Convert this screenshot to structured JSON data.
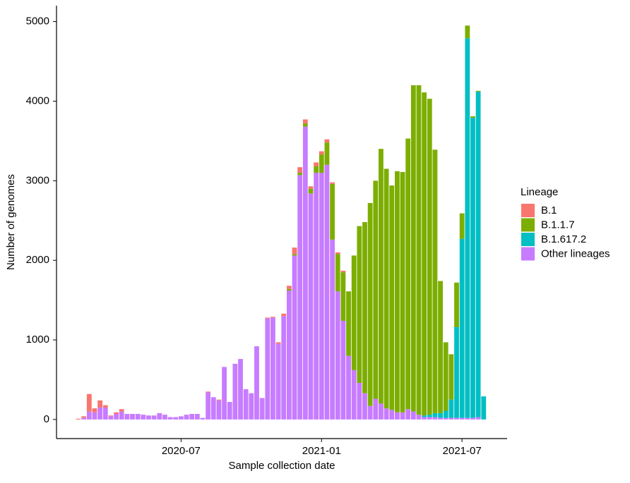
{
  "chart_data": {
    "type": "stacked_bar",
    "x_label": "Sample collection date",
    "y_label": "Number of genomes",
    "legend_title": "Lineage",
    "legend_position": "right",
    "grid": false,
    "categories": [
      null,
      null,
      null,
      null,
      null,
      null,
      null,
      null,
      null,
      null,
      null,
      null,
      null,
      null,
      null,
      null,
      null,
      null,
      null,
      "2020-07",
      null,
      null,
      null,
      null,
      null,
      null,
      null,
      null,
      null,
      null,
      null,
      null,
      null,
      null,
      null,
      null,
      null,
      null,
      null,
      null,
      null,
      null,
      null,
      null,
      null,
      "2021-01",
      null,
      null,
      null,
      null,
      null,
      null,
      null,
      null,
      null,
      null,
      null,
      null,
      null,
      null,
      null,
      null,
      null,
      null,
      null,
      null,
      null,
      null,
      null,
      null,
      null,
      "2021-07",
      null,
      null,
      null,
      null
    ],
    "ylim": [
      -240,
      5200
    ],
    "yticks": [
      0,
      1000,
      2000,
      3000,
      4000,
      5000
    ],
    "series": [
      {
        "name": "B.1",
        "color": "#F8766D",
        "values": [
          10,
          20,
          220,
          50,
          90,
          30,
          10,
          20,
          30,
          0,
          0,
          0,
          0,
          0,
          0,
          0,
          0,
          0,
          0,
          0,
          0,
          0,
          0,
          0,
          10,
          0,
          10,
          0,
          0,
          0,
          0,
          0,
          0,
          0,
          0,
          10,
          10,
          20,
          30,
          40,
          80,
          70,
          50,
          30,
          50,
          40,
          40,
          20,
          20,
          20,
          0,
          0,
          0,
          0,
          0,
          0,
          0,
          0,
          0,
          0,
          0,
          0,
          0,
          0,
          0,
          0,
          0,
          0,
          0,
          0,
          0,
          0,
          0,
          0,
          0,
          0
        ]
      },
      {
        "name": "B.1.1.7",
        "color": "#7CAE00",
        "values": [
          0,
          0,
          0,
          0,
          0,
          0,
          0,
          0,
          0,
          0,
          0,
          0,
          0,
          0,
          0,
          0,
          0,
          0,
          0,
          0,
          0,
          0,
          0,
          0,
          0,
          0,
          0,
          0,
          0,
          0,
          0,
          0,
          0,
          0,
          0,
          0,
          0,
          0,
          0,
          20,
          20,
          30,
          40,
          60,
          80,
          230,
          280,
          700,
          470,
          610,
          810,
          1440,
          1970,
          2150,
          2550,
          2740,
          3200,
          3010,
          2820,
          3030,
          3020,
          3400,
          4100,
          4140,
          4060,
          3970,
          3310,
          1660,
          860,
          570,
          560,
          320,
          160,
          20,
          10,
          0
        ]
      },
      {
        "name": "B.1.617.2",
        "color": "#00BFC4",
        "values": [
          0,
          0,
          0,
          0,
          0,
          0,
          0,
          0,
          0,
          0,
          0,
          0,
          0,
          0,
          0,
          0,
          0,
          0,
          0,
          0,
          0,
          0,
          0,
          0,
          0,
          0,
          0,
          0,
          0,
          0,
          0,
          0,
          0,
          0,
          0,
          0,
          0,
          0,
          0,
          0,
          0,
          0,
          0,
          0,
          0,
          0,
          0,
          0,
          0,
          0,
          0,
          0,
          0,
          0,
          0,
          0,
          0,
          0,
          0,
          0,
          0,
          0,
          0,
          0,
          20,
          30,
          50,
          60,
          90,
          230,
          1140,
          2250,
          4770,
          3770,
          4090,
          290
        ]
      },
      {
        "name": "Other lineages",
        "color": "#C77CFF",
        "values": [
          0,
          20,
          100,
          90,
          150,
          150,
          40,
          70,
          100,
          70,
          70,
          70,
          60,
          50,
          50,
          80,
          60,
          30,
          30,
          40,
          60,
          70,
          70,
          20,
          340,
          280,
          240,
          660,
          220,
          700,
          760,
          380,
          330,
          920,
          270,
          1270,
          1280,
          950,
          1300,
          1620,
          2060,
          3070,
          3680,
          2840,
          3100,
          3100,
          3200,
          2260,
          1610,
          1240,
          800,
          620,
          460,
          330,
          170,
          260,
          200,
          140,
          120,
          90,
          90,
          130,
          100,
          60,
          30,
          30,
          30,
          20,
          20,
          20,
          20,
          20,
          20,
          20,
          30,
          0
        ]
      }
    ]
  }
}
